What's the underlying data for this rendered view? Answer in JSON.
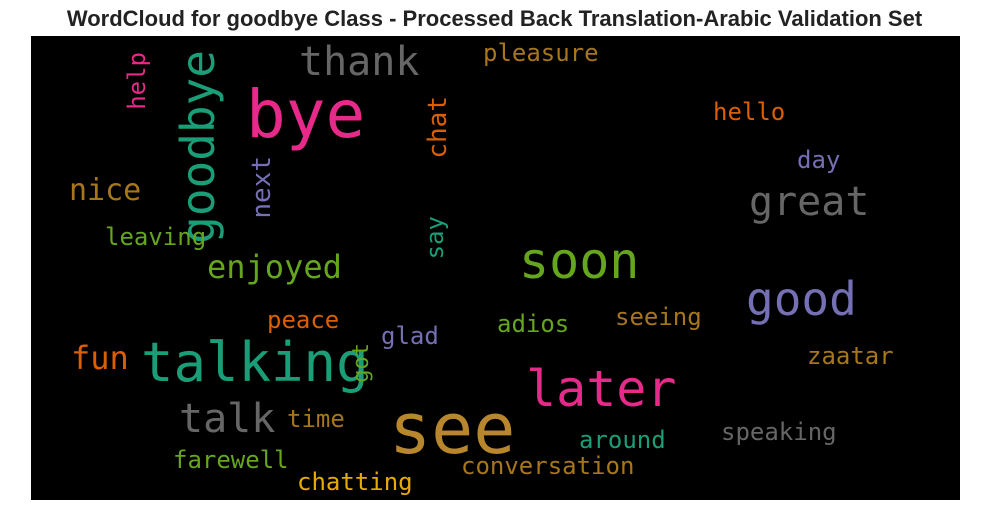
{
  "title": "WordCloud for goodbye Class - Processed Back Translation-Arabic Validation Set",
  "chart_data": {
    "type": "wordcloud",
    "background": "#000000",
    "words": [
      {
        "text": "see",
        "color": "#b8862c",
        "weight": 1.0
      },
      {
        "text": "bye",
        "color": "#e7298a",
        "weight": 0.9
      },
      {
        "text": "talking",
        "color": "#1b9e77",
        "weight": 0.75
      },
      {
        "text": "later",
        "color": "#e7298a",
        "weight": 0.7
      },
      {
        "text": "soon",
        "color": "#66a61e",
        "weight": 0.65
      },
      {
        "text": "goodbye",
        "color": "#1b9e77",
        "weight": 0.6
      },
      {
        "text": "good",
        "color": "#7570b3",
        "weight": 0.6
      },
      {
        "text": "thank",
        "color": "#666666",
        "weight": 0.55
      },
      {
        "text": "great",
        "color": "#666666",
        "weight": 0.55
      },
      {
        "text": "talk",
        "color": "#666666",
        "weight": 0.5
      },
      {
        "text": "nice",
        "color": "#a6761d",
        "weight": 0.4
      },
      {
        "text": "fun",
        "color": "#d95f02",
        "weight": 0.4
      },
      {
        "text": "enjoyed",
        "color": "#66a61e",
        "weight": 0.4
      },
      {
        "text": "pleasure",
        "color": "#a6761d",
        "weight": 0.3
      },
      {
        "text": "hello",
        "color": "#d95f02",
        "weight": 0.3
      },
      {
        "text": "day",
        "color": "#7570b3",
        "weight": 0.28
      },
      {
        "text": "help",
        "color": "#e7298a",
        "weight": 0.28
      },
      {
        "text": "chat",
        "color": "#d95f02",
        "weight": 0.3
      },
      {
        "text": "next",
        "color": "#7570b3",
        "weight": 0.3
      },
      {
        "text": "leaving",
        "color": "#66a61e",
        "weight": 0.3
      },
      {
        "text": "say",
        "color": "#1b9e77",
        "weight": 0.28
      },
      {
        "text": "peace",
        "color": "#d95f02",
        "weight": 0.3
      },
      {
        "text": "glad",
        "color": "#7570b3",
        "weight": 0.3
      },
      {
        "text": "adios",
        "color": "#66a61e",
        "weight": 0.3
      },
      {
        "text": "seeing",
        "color": "#a6761d",
        "weight": 0.3
      },
      {
        "text": "got",
        "color": "#66a61e",
        "weight": 0.28
      },
      {
        "text": "zaatar",
        "color": "#a6761d",
        "weight": 0.28
      },
      {
        "text": "time",
        "color": "#a6761d",
        "weight": 0.3
      },
      {
        "text": "around",
        "color": "#1b9e77",
        "weight": 0.3
      },
      {
        "text": "speaking",
        "color": "#666666",
        "weight": 0.3
      },
      {
        "text": "farewell",
        "color": "#66a61e",
        "weight": 0.3
      },
      {
        "text": "conversation",
        "color": "#a6761d",
        "weight": 0.3
      },
      {
        "text": "chatting",
        "color": "#e6ab02",
        "weight": 0.3
      }
    ]
  }
}
